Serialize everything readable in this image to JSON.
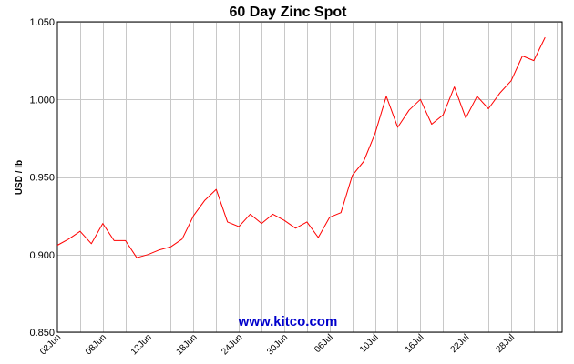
{
  "chart_data": {
    "type": "line",
    "title": "60 Day Zinc Spot",
    "ylabel": "USD / lb",
    "xlabel": "",
    "watermark": "www.kitco.com",
    "ylim": [
      0.85,
      1.05
    ],
    "yticks": [
      0.85,
      0.9,
      0.95,
      1.0,
      1.05
    ],
    "ytick_labels": [
      "0.850",
      "0.900",
      "0.950",
      "1.000",
      "1.050"
    ],
    "x_index_range": [
      0,
      44.5
    ],
    "xtick_labels": [
      "02Jun",
      "08Jun",
      "12Jun",
      "18Jun",
      "24Jun",
      "30Jun",
      "06Jul",
      "10Jul",
      "16Jul",
      "22Jul",
      "28Jul"
    ],
    "xtick_index": [
      0,
      4,
      8,
      12,
      16,
      20,
      24,
      28,
      32,
      36,
      40
    ],
    "grid": true,
    "line_color": "#ff0000",
    "series": [
      {
        "name": "",
        "values": [
          0.906,
          0.91,
          0.915,
          0.907,
          0.92,
          0.909,
          0.909,
          0.898,
          0.9,
          0.903,
          0.905,
          0.91,
          0.925,
          0.935,
          0.942,
          0.921,
          0.918,
          0.926,
          0.92,
          0.926,
          0.922,
          0.917,
          0.921,
          0.911,
          0.924,
          0.927,
          0.951,
          0.96,
          0.978,
          1.002,
          0.982,
          0.993,
          1.0,
          0.984,
          0.99,
          1.008,
          0.988,
          1.002,
          0.994,
          1.004,
          1.012,
          1.028,
          1.025,
          1.04
        ]
      }
    ]
  }
}
